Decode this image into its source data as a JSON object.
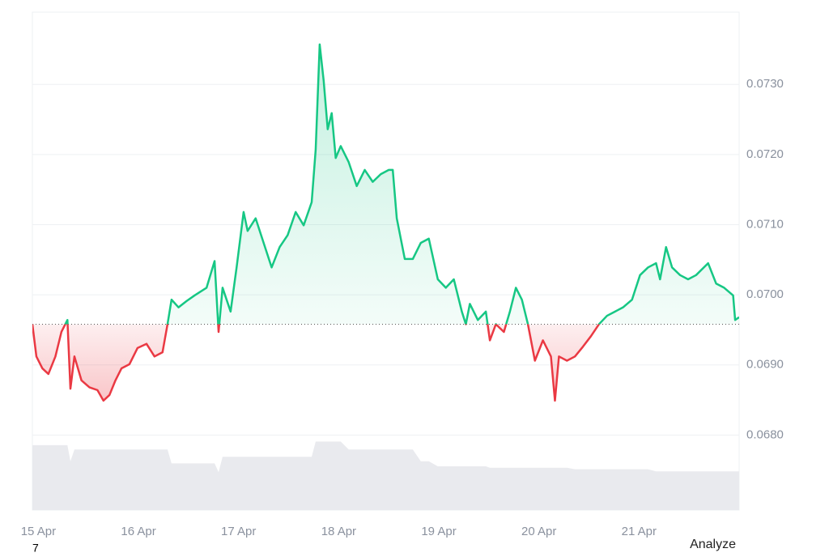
{
  "chart_data": {
    "type": "line",
    "x": [
      14.94,
      14.98,
      15.04,
      15.1,
      15.17,
      15.23,
      15.29,
      15.32,
      15.36,
      15.43,
      15.51,
      15.59,
      15.65,
      15.71,
      15.77,
      15.83,
      15.91,
      15.99,
      16.08,
      16.16,
      16.24,
      16.29,
      16.33,
      16.4,
      16.48,
      16.56,
      16.68,
      16.76,
      16.8,
      16.84,
      16.92,
      16.98,
      17.05,
      17.09,
      17.17,
      17.25,
      17.33,
      17.41,
      17.49,
      17.57,
      17.65,
      17.73,
      17.77,
      17.81,
      17.85,
      17.89,
      17.93,
      17.97,
      18.02,
      18.1,
      18.18,
      18.26,
      18.34,
      18.42,
      18.5,
      18.54,
      18.58,
      18.66,
      18.74,
      18.82,
      18.9,
      18.99,
      19.07,
      19.15,
      19.23,
      19.27,
      19.31,
      19.39,
      19.47,
      19.51,
      19.57,
      19.65,
      19.71,
      19.77,
      19.83,
      19.89,
      19.96,
      20.04,
      20.12,
      20.16,
      20.2,
      20.28,
      20.36,
      20.44,
      20.52,
      20.6,
      20.68,
      20.76,
      20.84,
      20.93,
      21.01,
      21.09,
      21.17,
      21.21,
      21.27,
      21.33,
      21.41,
      21.49,
      21.57,
      21.69,
      21.77,
      21.85,
      21.94,
      21.96,
      22.0
    ],
    "series": [
      {
        "color_up": "#16c784",
        "color_down": "#ea3943",
        "values": [
          0.06958,
          0.06912,
          0.06895,
          0.06887,
          0.06912,
          0.06947,
          0.06964,
          0.06866,
          0.06912,
          0.06878,
          0.06868,
          0.06864,
          0.06849,
          0.06857,
          0.06878,
          0.06895,
          0.06901,
          0.06924,
          0.0693,
          0.06912,
          0.06918,
          0.06958,
          0.06993,
          0.06982,
          0.06991,
          0.06999,
          0.0701,
          0.07048,
          0.06947,
          0.0701,
          0.06976,
          0.07039,
          0.07118,
          0.07091,
          0.07109,
          0.07074,
          0.07039,
          0.07068,
          0.07085,
          0.07118,
          0.07099,
          0.07132,
          0.07207,
          0.07357,
          0.07305,
          0.07236,
          0.07259,
          0.07195,
          0.07212,
          0.07189,
          0.07155,
          0.07178,
          0.07161,
          0.07172,
          0.07178,
          0.07178,
          0.07109,
          0.07051,
          0.07051,
          0.07074,
          0.0708,
          0.07022,
          0.0701,
          0.07022,
          0.06976,
          0.06958,
          0.06987,
          0.06964,
          0.06976,
          0.06935,
          0.06958,
          0.06947,
          0.06976,
          0.0701,
          0.06993,
          0.06958,
          0.06906,
          0.06935,
          0.06912,
          0.06849,
          0.06912,
          0.06906,
          0.06912,
          0.06926,
          0.06941,
          0.06958,
          0.0697,
          0.06976,
          0.06982,
          0.06993,
          0.07028,
          0.07039,
          0.07045,
          0.07022,
          0.07068,
          0.07039,
          0.07028,
          0.07022,
          0.07028,
          0.07045,
          0.07016,
          0.0701,
          0.06999,
          0.06964,
          0.06968
        ]
      }
    ],
    "baseline": 0.06958,
    "volume": {
      "color": "#e9eaee",
      "ylim": [
        0,
        100
      ],
      "values": [
        89,
        89,
        89,
        89,
        89,
        89,
        89,
        67,
        83,
        83,
        83,
        83,
        83,
        83,
        83,
        83,
        83,
        83,
        83,
        83,
        83,
        83,
        64,
        64,
        64,
        64,
        64,
        64,
        52,
        73,
        73,
        73,
        73,
        73,
        73,
        73,
        73,
        73,
        73,
        73,
        73,
        73,
        94,
        94,
        94,
        94,
        94,
        94,
        94,
        83,
        83,
        83,
        83,
        83,
        83,
        83,
        83,
        83,
        83,
        67,
        67,
        60,
        60,
        60,
        60,
        60,
        60,
        60,
        60,
        58,
        58,
        58,
        58,
        58,
        58,
        58,
        58,
        58,
        58,
        58,
        58,
        58,
        56,
        56,
        56,
        56,
        56,
        56,
        56,
        56,
        56,
        56,
        53,
        53,
        53,
        53,
        53,
        53,
        53,
        53,
        53,
        53,
        53,
        53,
        53
      ]
    },
    "xlim": [
      14.94,
      22.0
    ],
    "xticks": [
      {
        "value": 15,
        "label": "15 Apr"
      },
      {
        "value": 16,
        "label": "16 Apr"
      },
      {
        "value": 17,
        "label": "17 Apr"
      },
      {
        "value": 18,
        "label": "18 Apr"
      },
      {
        "value": 19,
        "label": "19 Apr"
      },
      {
        "value": 20,
        "label": "20 Apr"
      },
      {
        "value": 21,
        "label": "21 Apr"
      }
    ],
    "ylim": [
      0.06693,
      0.07403
    ],
    "yticks": [
      {
        "value": 0.068,
        "label": "0.0680"
      },
      {
        "value": 0.069,
        "label": "0.0690"
      },
      {
        "value": 0.07,
        "label": "0.0700"
      },
      {
        "value": 0.071,
        "label": "0.0710"
      },
      {
        "value": 0.072,
        "label": "0.0720"
      },
      {
        "value": 0.073,
        "label": "0.0730"
      }
    ],
    "grid": true
  },
  "ui": {
    "corner_label": "7",
    "analyze": "Analyze"
  }
}
